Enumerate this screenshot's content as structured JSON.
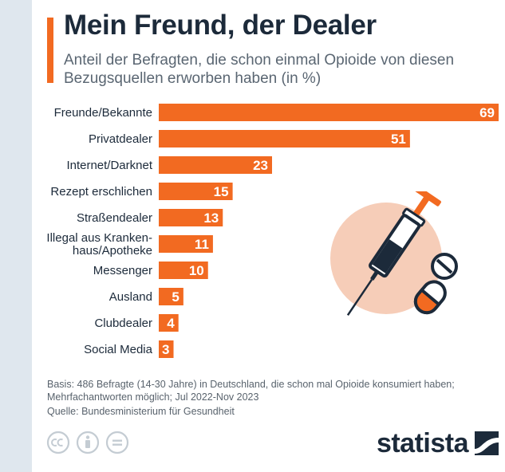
{
  "header": {
    "title": "Mein Freund, der Dealer",
    "subtitle": "Anteil der Befragten, die schon einmal Opioide von diesen Bezugsquellen erworben haben (in %)"
  },
  "chart_data": {
    "type": "bar",
    "orientation": "horizontal",
    "categories": [
      "Freunde/Bekannte",
      "Privatdealer",
      "Internet/Darknet",
      "Rezept erschlichen",
      "Straßendealer",
      [
        "Illegal aus Kranken-",
        "haus/Apotheke"
      ],
      "Messenger",
      "Ausland",
      "Clubdealer",
      "Social Media"
    ],
    "values": [
      69,
      51,
      23,
      15,
      13,
      11,
      10,
      5,
      4,
      3
    ],
    "xlim": [
      0,
      69
    ],
    "grid": false,
    "legend": "none",
    "bar_color": "#f26a21",
    "label_color": "#ffffff"
  },
  "footer": {
    "note": "Basis: 486 Befragte (14-30 Jahre) in Deutschland, die schon mal Opioide konsumiert haben; Mehrfachantworten möglich; Jul 2022-Nov 2023",
    "source": "Quelle: Bundesministerium für Gesundheit",
    "brand": "statista"
  },
  "icons": {
    "license": [
      "cc-icon",
      "attribution-icon",
      "no-derivatives-icon"
    ],
    "illustration": "syringe-and-pills-icon",
    "logo": "statista-logo-icon"
  },
  "colors": {
    "accent": "#f26a21",
    "title": "#1c2a3a",
    "illustration_circle": "#f6cdb8"
  }
}
